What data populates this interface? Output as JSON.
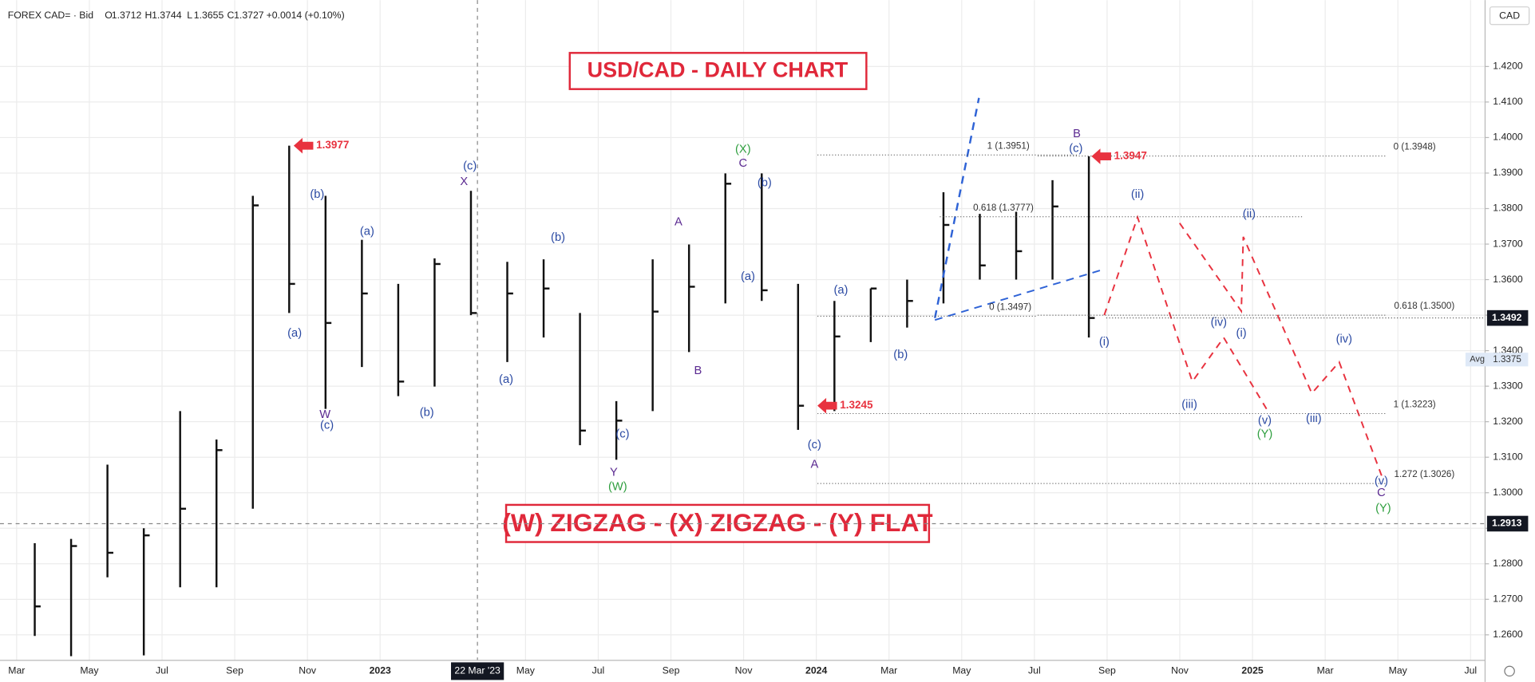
{
  "header": {
    "symbol": "FOREX CAD= · Bid",
    "ohlc": [
      {
        "label": "O",
        "value": "1.3712"
      },
      {
        "label": "H",
        "value": "1.3744"
      },
      {
        "label": "L",
        "value": "1.3655"
      },
      {
        "label": "C",
        "value": "1.3727"
      }
    ],
    "change": "+0.0014 (+0.10%)"
  },
  "chart_data": {
    "type": "ohlc",
    "title": "USD/CAD - DAILY CHART",
    "subtitle": "(W) ZIGZAG - (X) ZIGZAG - (Y) FLAT",
    "currency": "CAD",
    "color": "#111111",
    "grid": true,
    "x": [
      "2022-03",
      "2022-04",
      "2022-05",
      "2022-06",
      "2022-07",
      "2022-08",
      "2022-09",
      "2022-10",
      "2022-11",
      "2022-12",
      "2023-01",
      "2023-02",
      "2023-03",
      "2023-04",
      "2023-05",
      "2023-06",
      "2023-07",
      "2023-08",
      "2023-09",
      "2023-10",
      "2023-11",
      "2023-12",
      "2024-01",
      "2024-02",
      "2024-03",
      "2024-04",
      "2024-05",
      "2024-06",
      "2024-07",
      "2024-08"
    ],
    "high": [
      1.2858,
      1.287,
      1.3079,
      1.29,
      1.323,
      1.315,
      1.3836,
      1.3977,
      1.3836,
      1.3712,
      1.3588,
      1.366,
      1.385,
      1.365,
      1.3657,
      1.3506,
      1.3258,
      1.3657,
      1.3699,
      1.3899,
      1.3899,
      1.3588,
      1.354,
      1.3575,
      1.36,
      1.3846,
      1.3785,
      1.3791,
      1.388,
      1.3947
    ],
    "low": [
      1.2597,
      1.254,
      1.2762,
      1.2542,
      1.2734,
      1.2734,
      1.2955,
      1.3506,
      1.3236,
      1.3354,
      1.3272,
      1.3299,
      1.35,
      1.3368,
      1.3437,
      1.3134,
      1.3093,
      1.323,
      1.3396,
      1.3533,
      1.354,
      1.3177,
      1.323,
      1.3424,
      1.3465,
      1.3533,
      1.36,
      1.36,
      1.36,
      1.3437
    ],
    "close": [
      1.268,
      1.285,
      1.2831,
      1.288,
      1.2955,
      1.312,
      1.3809,
      1.3588,
      1.3478,
      1.3561,
      1.3313,
      1.3644,
      1.3506,
      1.3561,
      1.3575,
      1.3175,
      1.3203,
      1.351,
      1.358,
      1.387,
      1.357,
      1.3245,
      1.344,
      1.3575,
      1.354,
      1.3754,
      1.364,
      1.368,
      1.3806,
      1.3492
    ],
    "ylim": [
      1.2528,
      1.4387
    ],
    "yticks": [
      {
        "value": 1.26,
        "label": "1.2600"
      },
      {
        "value": 1.27,
        "label": "1.2700"
      },
      {
        "value": 1.28,
        "label": "1.2800"
      },
      {
        "value": 1.29,
        "label": "1.2900"
      },
      {
        "value": 1.3,
        "label": "1.3000"
      },
      {
        "value": 1.31,
        "label": "1.3100"
      },
      {
        "value": 1.32,
        "label": "1.3200"
      },
      {
        "value": 1.33,
        "label": "1.3300"
      },
      {
        "value": 1.34,
        "label": "1.3400"
      },
      {
        "value": 1.35,
        "label": "1.3500"
      },
      {
        "value": 1.36,
        "label": "1.3600"
      },
      {
        "value": 1.37,
        "label": "1.3700"
      },
      {
        "value": 1.38,
        "label": "1.3800"
      },
      {
        "value": 1.39,
        "label": "1.3900"
      },
      {
        "value": 1.4,
        "label": "1.4000"
      },
      {
        "value": 1.41,
        "label": "1.4100"
      },
      {
        "value": 1.42,
        "label": "1.4200"
      }
    ],
    "xticks": [
      {
        "value": "2022-03",
        "label": "Mar"
      },
      {
        "value": "2022-05",
        "label": "May"
      },
      {
        "value": "2022-07",
        "label": "Jul"
      },
      {
        "value": "2022-09",
        "label": "Sep"
      },
      {
        "value": "2022-11",
        "label": "Nov"
      },
      {
        "value": "2023-01",
        "label": "2023"
      },
      {
        "value": "2023-05",
        "label": "May"
      },
      {
        "value": "2023-07",
        "label": "Jul"
      },
      {
        "value": "2023-09",
        "label": "Sep"
      },
      {
        "value": "2023-11",
        "label": "Nov"
      },
      {
        "value": "2024-01",
        "label": "2024"
      },
      {
        "value": "2024-03",
        "label": "Mar"
      },
      {
        "value": "2024-05",
        "label": "May"
      },
      {
        "value": "2024-07",
        "label": "Jul"
      },
      {
        "value": "2024-09",
        "label": "Sep"
      },
      {
        "value": "2024-11",
        "label": "Nov"
      },
      {
        "value": "2025-01",
        "label": "2025"
      },
      {
        "value": "2025-03",
        "label": "Mar"
      },
      {
        "value": "2025-05",
        "label": "May"
      },
      {
        "value": "2025-07",
        "label": "Jul"
      }
    ],
    "last_price": {
      "value": 1.3492,
      "label": "1.3492"
    },
    "average": {
      "name": "Avg",
      "value": 1.3375,
      "label": "1.3375"
    },
    "crosshair": {
      "x": "2023-03-22",
      "x_label": "22 Mar '23",
      "value": 1.2913,
      "label": "1.2913"
    },
    "price_markers": [
      {
        "value": 1.3977,
        "label": "1.3977"
      },
      {
        "value": 1.3947,
        "label": "1.3947"
      },
      {
        "value": 1.3245,
        "label": "1.3245"
      }
    ],
    "marker_color": "#e8323f",
    "fib_levels": [
      {
        "value": 1.3951,
        "label": "1 (1.3951)"
      },
      {
        "value": 1.3777,
        "label": "0.618 (1.3777)"
      },
      {
        "value": 1.3497,
        "label": "0 (1.3497)"
      },
      {
        "value": 1.3948,
        "label": "0 (1.3948)"
      },
      {
        "value": 1.35,
        "label": "0.618 (1.3500)"
      },
      {
        "value": 1.3223,
        "label": "1 (1.3223)"
      },
      {
        "value": 1.3026,
        "label": "1.272 (1.3026)"
      }
    ],
    "annotations": [
      {
        "text": "(b)",
        "color": "#2b4aa3"
      },
      {
        "text": "(a)",
        "color": "#2b4aa3"
      },
      {
        "text": "W",
        "color": "#5b2a91"
      },
      {
        "text": "(c)",
        "color": "#2b4aa3"
      },
      {
        "text": "(a)",
        "color": "#2b4aa3"
      },
      {
        "text": "(b)",
        "color": "#2b4aa3"
      },
      {
        "text": "(c)",
        "color": "#2b4aa3"
      },
      {
        "text": "X",
        "color": "#5b2a91"
      },
      {
        "text": "(b)",
        "color": "#2b4aa3"
      },
      {
        "text": "(a)",
        "color": "#2b4aa3"
      },
      {
        "text": "(c)",
        "color": "#2b4aa3"
      },
      {
        "text": "Y",
        "color": "#5b2a91"
      },
      {
        "text": "(W)",
        "color": "#2e9e3e"
      },
      {
        "text": "A",
        "color": "#5b2a91"
      },
      {
        "text": "B",
        "color": "#5b2a91"
      },
      {
        "text": "(X)",
        "color": "#2e9e3e"
      },
      {
        "text": "C",
        "color": "#5b2a91"
      },
      {
        "text": "(b)",
        "color": "#2b4aa3"
      },
      {
        "text": "(a)",
        "color": "#2b4aa3"
      },
      {
        "text": "(c)",
        "color": "#2b4aa3"
      },
      {
        "text": "A",
        "color": "#5b2a91"
      },
      {
        "text": "(a)",
        "color": "#2b4aa3"
      },
      {
        "text": "(b)",
        "color": "#2b4aa3"
      },
      {
        "text": "B",
        "color": "#5b2a91"
      },
      {
        "text": "(c)",
        "color": "#2b4aa3"
      },
      {
        "text": "(ii)",
        "color": "#2b4aa3"
      },
      {
        "text": "(i)",
        "color": "#2b4aa3"
      },
      {
        "text": "(iii)",
        "color": "#2b4aa3"
      },
      {
        "text": "(iv)",
        "color": "#2b4aa3"
      },
      {
        "text": "(i)",
        "color": "#2b4aa3"
      },
      {
        "text": "(ii)",
        "color": "#2b4aa3"
      },
      {
        "text": "(v)",
        "color": "#2b4aa3"
      },
      {
        "text": "(Y)",
        "color": "#2e9e3e"
      },
      {
        "text": "(iii)",
        "color": "#2b4aa3"
      },
      {
        "text": "(iv)",
        "color": "#2b4aa3"
      },
      {
        "text": "(v)",
        "color": "#2b4aa3"
      },
      {
        "text": "C",
        "color": "#5b2a91"
      },
      {
        "text": "(Y)",
        "color": "#2e9e3e"
      }
    ]
  }
}
